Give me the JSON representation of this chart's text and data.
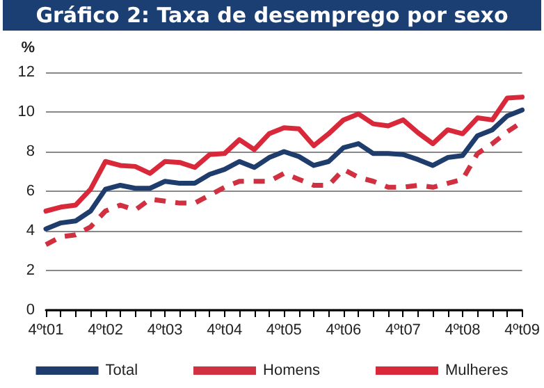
{
  "chart_data": {
    "type": "line",
    "title": "Gráfico 2: Taxa de desemprego por sexo",
    "ylabel": "%",
    "categories": [
      "4ºt01",
      null,
      null,
      null,
      "4ºt02",
      null,
      null,
      null,
      "4ºt03",
      null,
      null,
      null,
      "4ºt04",
      null,
      null,
      null,
      "4ºt05",
      null,
      null,
      null,
      "4ºt06",
      null,
      null,
      null,
      "4ºt07",
      null,
      null,
      null,
      "4ºt08",
      null,
      null,
      null,
      "4ºt09"
    ],
    "series": [
      {
        "name": "Total",
        "color": "#1f3d6c",
        "line_style": "solid",
        "values": [
          4.1,
          4.4,
          4.5,
          5.0,
          6.1,
          6.3,
          6.15,
          6.15,
          6.5,
          6.4,
          6.4,
          6.85,
          7.1,
          7.5,
          7.2,
          7.7,
          8.0,
          7.75,
          7.3,
          7.5,
          8.2,
          8.4,
          7.9,
          7.9,
          7.85,
          7.6,
          7.3,
          7.7,
          7.8,
          8.8,
          9.1,
          9.8,
          10.1
        ]
      },
      {
        "name": "Homens",
        "color": "#d0303f",
        "line_style": "dashed",
        "values": [
          3.3,
          3.7,
          3.8,
          4.2,
          5.0,
          5.3,
          5.05,
          5.6,
          5.5,
          5.4,
          5.4,
          5.8,
          6.2,
          6.5,
          6.5,
          6.5,
          6.9,
          6.6,
          6.3,
          6.3,
          7.1,
          6.7,
          6.5,
          6.2,
          6.2,
          6.3,
          6.2,
          6.4,
          6.6,
          7.9,
          8.4,
          9.0,
          9.5
        ]
      },
      {
        "name": "Mulheres",
        "color": "#d9283a",
        "line_style": "solid",
        "values": [
          5.0,
          5.2,
          5.3,
          6.1,
          7.5,
          7.3,
          7.25,
          6.9,
          7.5,
          7.45,
          7.2,
          7.85,
          7.9,
          8.6,
          8.1,
          8.9,
          9.2,
          9.15,
          8.3,
          8.9,
          9.6,
          9.9,
          9.4,
          9.3,
          9.6,
          8.95,
          8.4,
          9.1,
          8.9,
          9.7,
          9.6,
          10.7,
          10.75
        ]
      }
    ],
    "ylim": [
      0,
      12
    ],
    "yticks": [
      0,
      2,
      4,
      6,
      8,
      10,
      12
    ],
    "grid": "y",
    "legend": "bottom",
    "marker": "none"
  }
}
